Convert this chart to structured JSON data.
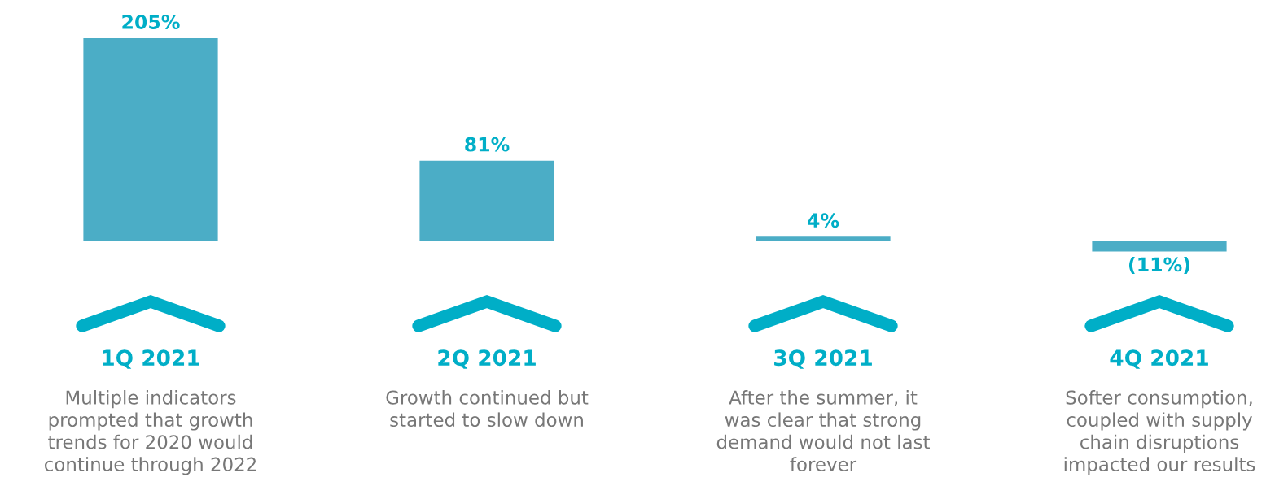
{
  "chart_data": {
    "type": "bar",
    "categories": [
      "1Q 2021",
      "2Q 2021",
      "3Q 2021",
      "4Q 2021"
    ],
    "values": [
      205,
      81,
      4,
      -11
    ],
    "value_labels": [
      "205%",
      "81%",
      "4%",
      "(11%)"
    ],
    "color": "#4badc6",
    "annotations": [
      "Multiple indicators\nprompted that growth\ntrends for 2020 would\ncontinue through 2022",
      "Growth continued but\nstarted to slow down",
      "After the summer, it\nwas clear that strong\ndemand would not last\nforever",
      "Softer consumption,\ncoupled with supply\nchain disruptions\nimpacted our results"
    ]
  }
}
